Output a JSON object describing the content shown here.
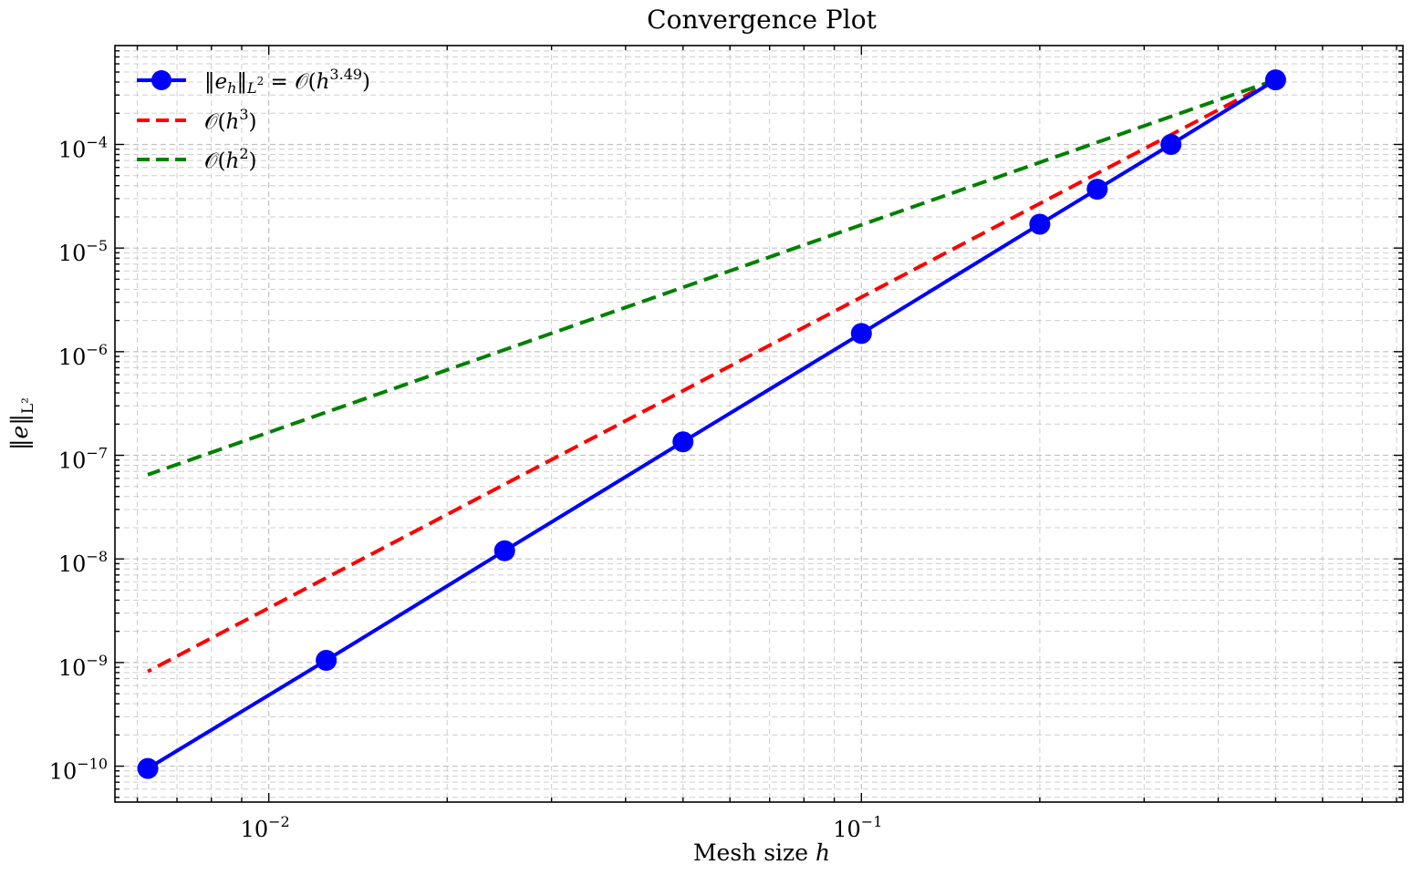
{
  "chart_data": {
    "type": "line",
    "title": "Convergence Plot",
    "xlabel": "Mesh size h",
    "ylabel": "‖e‖L²",
    "xscale": "log",
    "yscale": "log",
    "xlim": [
      0.0055,
      0.82
    ],
    "ylim": [
      4.5e-11,
      0.0009
    ],
    "grid": true,
    "legend_position": "top-left",
    "x_ticks": [
      {
        "value": 0.01,
        "label": "10−2"
      },
      {
        "value": 0.1,
        "label": "10−1"
      }
    ],
    "y_ticks": [
      {
        "value": 1e-10,
        "label": "10−10"
      },
      {
        "value": 1e-09,
        "label": "10−9"
      },
      {
        "value": 1e-08,
        "label": "10−8"
      },
      {
        "value": 1e-07,
        "label": "10−7"
      },
      {
        "value": 1e-06,
        "label": "10−6"
      },
      {
        "value": 1e-05,
        "label": "10−5"
      },
      {
        "value": 0.0001,
        "label": "10−4"
      }
    ],
    "series": [
      {
        "name": "‖eh‖L² = O(h3.49)",
        "color": "#0000ff",
        "style": "solid-marker",
        "x": [
          0.5,
          0.333,
          0.25,
          0.2,
          0.1,
          0.05,
          0.025,
          0.0125,
          0.00625
        ],
        "y": [
          0.00042,
          0.0001,
          3.7e-05,
          1.7e-05,
          1.5e-06,
          1.35e-07,
          1.2e-08,
          1.05e-09,
          9.5e-11
        ]
      },
      {
        "name": "O(h3)",
        "color": "#ff0000",
        "style": "dashed",
        "x": [
          0.5,
          0.00625
        ],
        "y": [
          0.00042,
          8.2e-10
        ]
      },
      {
        "name": "O(h2)",
        "color": "#008000",
        "style": "dashed",
        "x": [
          0.5,
          0.00625
        ],
        "y": [
          0.00042,
          6.5e-08
        ]
      }
    ]
  }
}
